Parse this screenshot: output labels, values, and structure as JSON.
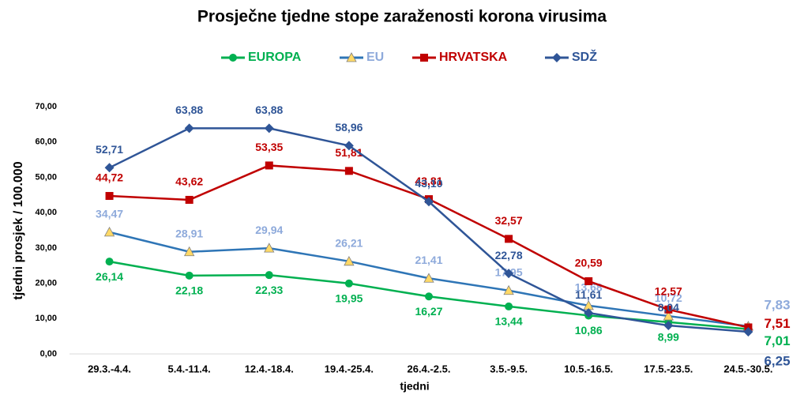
{
  "chart_data": {
    "type": "line",
    "title": "Prosječne tjedne stope zaraženosti korona virusima",
    "x_label": "tjedni",
    "y_label": "tjedni prosjek / 100.000",
    "categories": [
      "29.3.-4.4.",
      "5.4.-11.4.",
      "12.4.-18.4.",
      "19.4.-25.4.",
      "26.4.-2.5.",
      "3.5.-9.5.",
      "10.5.-16.5.",
      "17.5.-23.5.",
      "24.5.-30.5."
    ],
    "ylim": [
      0,
      70
    ],
    "yticks": [
      {
        "value": 0,
        "label": "0,00"
      },
      {
        "value": 10,
        "label": "10,00"
      },
      {
        "value": 20,
        "label": "20,00"
      },
      {
        "value": 30,
        "label": "30,00"
      },
      {
        "value": 40,
        "label": "40,00"
      },
      {
        "value": 50,
        "label": "50,00"
      },
      {
        "value": 60,
        "label": "60,00"
      },
      {
        "value": 70,
        "label": "70,00"
      }
    ],
    "grid": false,
    "legend": "top",
    "series": [
      {
        "name": "EUROPA",
        "color": "#00b050",
        "label_color": "#00b050",
        "marker": "circle",
        "marker_color": "#00b050",
        "values": [
          26.14,
          22.18,
          22.33,
          19.95,
          16.27,
          13.44,
          10.86,
          8.99,
          7.01
        ],
        "value_labels": [
          "26,14",
          "22,18",
          "22,33",
          "19,95",
          "16,27",
          "13,44",
          "10,86",
          "8,99",
          "7,01"
        ]
      },
      {
        "name": "EU",
        "color": "#2e75b6",
        "label_color": "#8eaadb",
        "marker": "triangle",
        "marker_color": "#ffd966",
        "values": [
          34.47,
          28.91,
          29.94,
          26.21,
          21.41,
          17.95,
          13.68,
          10.72,
          7.83
        ],
        "value_labels": [
          "34,47",
          "28,91",
          "29,94",
          "26,21",
          "21,41",
          "17,95",
          "13,68",
          "10,72",
          "7,83"
        ]
      },
      {
        "name": "HRVATSKA",
        "color": "#c00000",
        "label_color": "#c00000",
        "marker": "square",
        "marker_color": "#c00000",
        "values": [
          44.72,
          43.62,
          53.35,
          51.81,
          43.81,
          32.57,
          20.59,
          12.57,
          7.51
        ],
        "value_labels": [
          "44,72",
          "43,62",
          "53,35",
          "51,81",
          "43,81",
          "32,57",
          "20,59",
          "12,57",
          "7,51"
        ]
      },
      {
        "name": "SDŽ",
        "color": "#2f5597",
        "label_color": "#2f5597",
        "marker": "diamond",
        "marker_color": "#2f5597",
        "values": [
          52.71,
          63.88,
          63.88,
          58.96,
          43.1,
          22.78,
          11.61,
          8.04,
          6.25
        ],
        "value_labels": [
          "52,71",
          "63,88",
          "63,88",
          "58,96",
          "43,10",
          "22,78",
          "11,61",
          "8,04",
          "6,25"
        ]
      }
    ]
  }
}
